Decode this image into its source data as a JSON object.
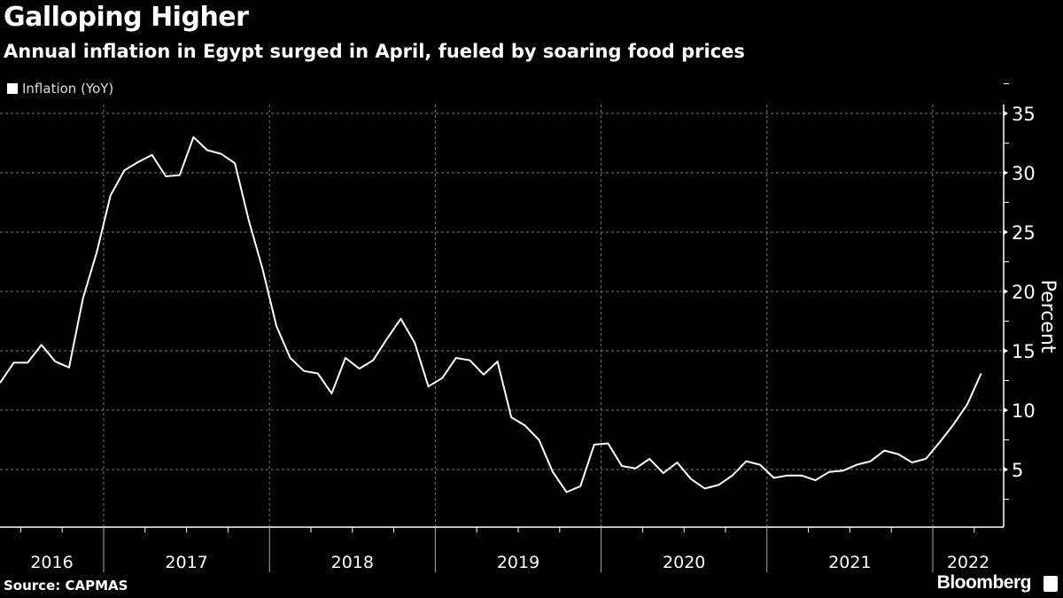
{
  "header": {
    "title": "Galloping Higher",
    "subtitle": "Annual inflation in Egypt surged in April, fueled by soaring food prices"
  },
  "footer": {
    "source": "Source: CAPMAS",
    "brand": "Bloomberg"
  },
  "colors": {
    "background": "#000000",
    "line": "#ffffff",
    "grid": "#777777"
  },
  "chart_data": {
    "type": "line",
    "title": "Galloping Higher",
    "subtitle": "Annual inflation in Egypt surged in April, fueled by soaring food prices",
    "xlabel": "",
    "ylabel": "Percent",
    "ylim": [
      0,
      36
    ],
    "yticks": [
      5,
      10,
      15,
      20,
      25,
      30,
      35
    ],
    "ytick_labels": [
      "5",
      "10",
      "15",
      "20",
      "25",
      "30",
      "35"
    ],
    "xtick_labels": [
      "2016",
      "2017",
      "2018",
      "2019",
      "2020",
      "2021",
      "2022"
    ],
    "grid": true,
    "legend": {
      "position": "top-left",
      "entries": [
        "Inflation (YoY)"
      ]
    },
    "start": "2016-05",
    "end": "2022-04",
    "series": [
      {
        "name": "Inflation (YoY)",
        "values": [
          12.3,
          14.0,
          14.0,
          15.5,
          14.1,
          13.6,
          19.4,
          23.3,
          28.1,
          30.2,
          30.9,
          31.5,
          29.7,
          29.8,
          33.0,
          31.9,
          31.6,
          30.8,
          26.0,
          21.9,
          17.1,
          14.4,
          13.3,
          13.1,
          11.4,
          14.4,
          13.5,
          14.2,
          16.0,
          17.7,
          15.7,
          12.0,
          12.7,
          14.4,
          14.2,
          13.0,
          14.1,
          9.4,
          8.7,
          7.5,
          4.8,
          3.1,
          3.6,
          7.1,
          7.2,
          5.3,
          5.1,
          5.9,
          4.7,
          5.6,
          4.2,
          3.4,
          3.7,
          4.5,
          5.7,
          5.4,
          4.3,
          4.5,
          4.5,
          4.1,
          4.8,
          4.9,
          5.4,
          5.7,
          6.6,
          6.3,
          5.6,
          5.9,
          7.3,
          8.8,
          10.5,
          13.1
        ]
      }
    ]
  }
}
